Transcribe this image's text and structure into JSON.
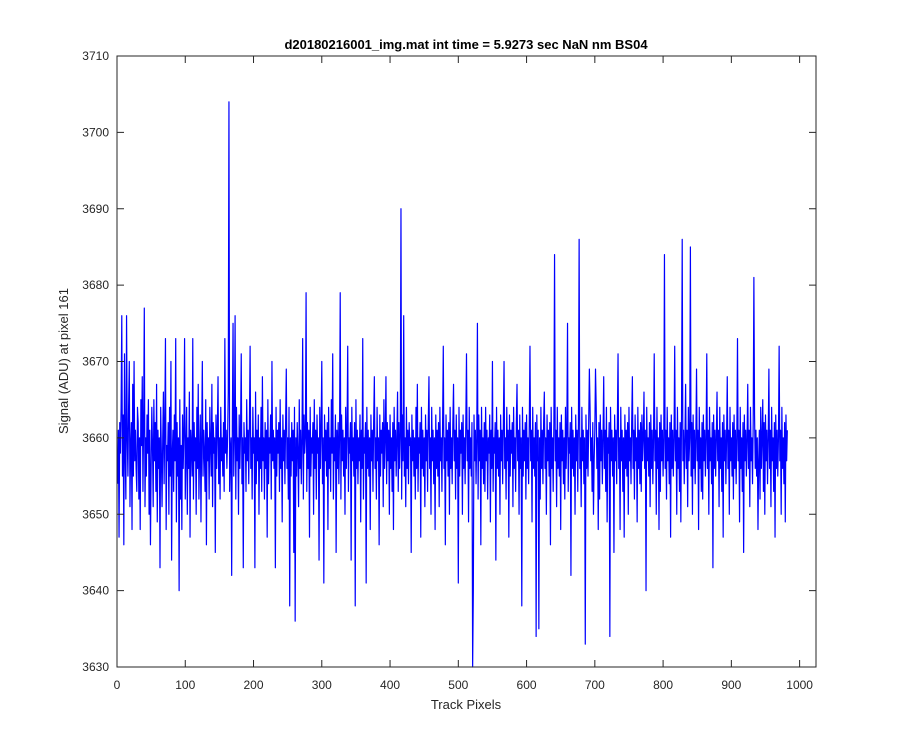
{
  "chart_data": {
    "type": "line",
    "title": "d20180216001_img.mat int time = 5.9273 sec  NaN nm BS04",
    "xlabel": "Track Pixels",
    "ylabel": "Signal (ADU) at pixel 161",
    "xlim": [
      0,
      1024
    ],
    "ylim": [
      3630,
      3710
    ],
    "xticks": [
      0,
      100,
      200,
      300,
      400,
      500,
      600,
      700,
      800,
      900,
      1000
    ],
    "yticks": [
      3630,
      3640,
      3650,
      3660,
      3670,
      3680,
      3690,
      3700,
      3710
    ],
    "grid": false,
    "legend": "none",
    "line_color": "#0000ff",
    "series": [
      {
        "x_start": 1,
        "x_step": 1,
        "values": [
          3654,
          3661,
          3647,
          3662,
          3658,
          3664,
          3676,
          3655,
          3663,
          3646,
          3671,
          3658,
          3652,
          3676,
          3660,
          3655,
          3664,
          3670,
          3651,
          3659,
          3662,
          3648,
          3667,
          3655,
          3670,
          3657,
          3661,
          3656,
          3653,
          3664,
          3662,
          3652,
          3660,
          3648,
          3665,
          3659,
          3668,
          3653,
          3662,
          3677,
          3651,
          3660,
          3655,
          3663,
          3658,
          3665,
          3650,
          3661,
          3646,
          3656,
          3664,
          3659,
          3651,
          3665,
          3657,
          3662,
          3653,
          3667,
          3649,
          3661,
          3656,
          3660,
          3643,
          3664,
          3658,
          3651,
          3660,
          3666,
          3654,
          3662,
          3673,
          3648,
          3659,
          3657,
          3662,
          3650,
          3664,
          3655,
          3670,
          3644,
          3658,
          3661,
          3653,
          3663,
          3657,
          3673,
          3649,
          3662,
          3655,
          3660,
          3640,
          3665,
          3652,
          3659,
          3648,
          3663,
          3656,
          3661,
          3673,
          3652,
          3658,
          3664,
          3650,
          3660,
          3656,
          3666,
          3647,
          3661,
          3659,
          3655,
          3673,
          3652,
          3662,
          3657,
          3660,
          3650,
          3664,
          3656,
          3667,
          3652,
          3658,
          3663,
          3649,
          3660,
          3670,
          3655,
          3661,
          3658,
          3653,
          3665,
          3646,
          3662,
          3657,
          3660,
          3652,
          3664,
          3659,
          3655,
          3667,
          3651,
          3662,
          3658,
          3660,
          3645,
          3663,
          3656,
          3661,
          3668,
          3654,
          3660,
          3652,
          3664,
          3657,
          3660,
          3655,
          3662,
          3653,
          3673,
          3658,
          3661,
          3656,
          3660,
          3666,
          3704,
          3653,
          3658,
          3660,
          3642,
          3662,
          3675,
          3655,
          3660,
          3676,
          3652,
          3664,
          3657,
          3660,
          3650,
          3663,
          3656,
          3661,
          3671,
          3654,
          3660,
          3643,
          3662,
          3658,
          3660,
          3653,
          3665,
          3657,
          3661,
          3654,
          3662,
          3672,
          3656,
          3660,
          3652,
          3664,
          3658,
          3660,
          3643,
          3666,
          3654,
          3661,
          3657,
          3663,
          3650,
          3660,
          3656,
          3664,
          3653,
          3668,
          3657,
          3660,
          3652,
          3662,
          3656,
          3661,
          3647,
          3665,
          3654,
          3660,
          3658,
          3663,
          3652,
          3670,
          3657,
          3661,
          3656,
          3660,
          3643,
          3664,
          3655,
          3661,
          3658,
          3662,
          3653,
          3665,
          3656,
          3660,
          3649,
          3663,
          3657,
          3661,
          3654,
          3662,
          3669,
          3656,
          3660,
          3652,
          3664,
          3638,
          3660,
          3655,
          3662,
          3657,
          3661,
          3645,
          3664,
          3636,
          3660,
          3655,
          3662,
          3658,
          3651,
          3665,
          3656,
          3661,
          3654,
          3660,
          3673,
          3652,
          3663,
          3658,
          3660,
          3679,
          3653,
          3662,
          3656,
          3661,
          3647,
          3664,
          3655,
          3660,
          3658,
          3662,
          3650,
          3665,
          3656,
          3661,
          3652,
          3663,
          3658,
          3660,
          3644,
          3664,
          3656,
          3661,
          3670,
          3654,
          3660,
          3641,
          3663,
          3657,
          3661,
          3655,
          3662,
          3648,
          3664,
          3656,
          3660,
          3653,
          3665,
          3658,
          3671,
          3652,
          3660,
          3657,
          3663,
          3645,
          3661,
          3656,
          3662,
          3654,
          3660,
          3679,
          3652,
          3663,
          3657,
          3661,
          3655,
          3660,
          3650,
          3664,
          3656,
          3661,
          3672,
          3653,
          3660,
          3658,
          3662,
          3644,
          3664,
          3657,
          3660,
          3655,
          3662,
          3638,
          3665,
          3656,
          3661,
          3654,
          3660,
          3657,
          3663,
          3649,
          3661,
          3656,
          3673,
          3652,
          3660,
          3658,
          3662,
          3641,
          3664,
          3656,
          3661,
          3655,
          3660,
          3648,
          3663,
          3657,
          3661,
          3653,
          3662,
          3668,
          3656,
          3660,
          3652,
          3664,
          3657,
          3660,
          3646,
          3663,
          3655,
          3661,
          3658,
          3662,
          3651,
          3665,
          3656,
          3660,
          3668,
          3654,
          3662,
          3657,
          3661,
          3650,
          3663,
          3656,
          3660,
          3653,
          3662,
          3648,
          3664,
          3657,
          3661,
          3655,
          3660,
          3666,
          3653,
          3662,
          3656,
          3660,
          3690,
          3652,
          3663,
          3657,
          3676,
          3655,
          3660,
          3651,
          3664,
          3656,
          3661,
          3654,
          3662,
          3659,
          3660,
          3645,
          3663,
          3657,
          3661,
          3655,
          3660,
          3652,
          3664,
          3656,
          3667,
          3653,
          3660,
          3658,
          3662,
          3647,
          3664,
          3656,
          3661,
          3655,
          3660,
          3651,
          3663,
          3657,
          3661,
          3653,
          3662,
          3668,
          3656,
          3660,
          3650,
          3664,
          3657,
          3661,
          3654,
          3660,
          3648,
          3663,
          3656,
          3661,
          3655,
          3662,
          3651,
          3664,
          3657,
          3660,
          3653,
          3662,
          3672,
          3656,
          3660,
          3646,
          3663,
          3657,
          3661,
          3655,
          3662,
          3650,
          3664,
          3656,
          3660,
          3654,
          3662,
          3667,
          3657,
          3661,
          3652,
          3663,
          3656,
          3660,
          3641,
          3664,
          3655,
          3661,
          3658,
          3662,
          3650,
          3663,
          3656,
          3660,
          3654,
          3662,
          3671,
          3657,
          3661,
          3649,
          3664,
          3656,
          3660,
          3655,
          3662,
          3630,
          3640,
          3663,
          3657,
          3661,
          3654,
          3660,
          3675,
          3652,
          3663,
          3657,
          3661,
          3646,
          3664,
          3656,
          3660,
          3654,
          3662,
          3653,
          3664,
          3657,
          3661,
          3652,
          3660,
          3658,
          3663,
          3649,
          3661,
          3656,
          3670,
          3653,
          3660,
          3658,
          3662,
          3644,
          3664,
          3656,
          3661,
          3655,
          3660,
          3650,
          3663,
          3657,
          3661,
          3654,
          3662,
          3670,
          3656,
          3660,
          3652,
          3664,
          3657,
          3661,
          3647,
          3663,
          3655,
          3661,
          3658,
          3662,
          3651,
          3664,
          3656,
          3660,
          3653,
          3662,
          3667,
          3657,
          3661,
          3650,
          3663,
          3656,
          3660,
          3638,
          3664,
          3655,
          3661,
          3657,
          3662,
          3652,
          3663,
          3656,
          3660,
          3654,
          3662,
          3672,
          3657,
          3661,
          3649,
          3664,
          3656,
          3660,
          3655,
          3662,
          3634,
          3663,
          3657,
          3661,
          3635,
          3660,
          3652,
          3664,
          3656,
          3661,
          3654,
          3662,
          3666,
          3656,
          3660,
          3650,
          3663,
          3657,
          3661,
          3655,
          3662,
          3646,
          3664,
          3656,
          3660,
          3653,
          3662,
          3684,
          3657,
          3661,
          3651,
          3664,
          3656,
          3660,
          3655,
          3662,
          3648,
          3663,
          3657,
          3661,
          3654,
          3660,
          3652,
          3664,
          3656,
          3661,
          3675,
          3653,
          3660,
          3658,
          3662,
          3642,
          3664,
          3656,
          3661,
          3655,
          3660,
          3650,
          3663,
          3657,
          3661,
          3653,
          3662,
          3686,
          3656,
          3660,
          3651,
          3664,
          3657,
          3661,
          3654,
          3660,
          3633,
          3663,
          3656,
          3661,
          3655,
          3662,
          3669,
          3664,
          3657,
          3660,
          3653,
          3662,
          3650,
          3657,
          3661,
          3669,
          3664,
          3656,
          3660,
          3648,
          3662,
          3652,
          3663,
          3657,
          3661,
          3654,
          3660,
          3668,
          3656,
          3661,
          3653,
          3664,
          3649,
          3660,
          3658,
          3662,
          3634,
          3664,
          3657,
          3661,
          3655,
          3660,
          3645,
          3663,
          3657,
          3661,
          3654,
          3662,
          3671,
          3656,
          3660,
          3648,
          3664,
          3657,
          3661,
          3653,
          3660,
          3647,
          3663,
          3656,
          3661,
          3655,
          3662,
          3650,
          3664,
          3657,
          3660,
          3654,
          3662,
          3668,
          3656,
          3661,
          3652,
          3663,
          3657,
          3660,
          3649,
          3664,
          3656,
          3661,
          3654,
          3662,
          3653,
          3663,
          3657,
          3660,
          3666,
          3656,
          3661,
          3640,
          3664,
          3657,
          3660,
          3655,
          3662,
          3651,
          3663,
          3656,
          3661,
          3654,
          3660,
          3671,
          3657,
          3661,
          3650,
          3664,
          3656,
          3660,
          3648,
          3662,
          3653,
          3663,
          3657,
          3661,
          3655,
          3660,
          3684,
          3656,
          3661,
          3652,
          3664,
          3657,
          3660,
          3654,
          3662,
          3647,
          3663,
          3656,
          3661,
          3655,
          3660,
          3672,
          3657,
          3661,
          3650,
          3664,
          3656,
          3660,
          3653,
          3662,
          3649,
          3663,
          3686,
          3657,
          3661,
          3654,
          3660,
          3667,
          3656,
          3661,
          3651,
          3664,
          3657,
          3660,
          3685,
          3655,
          3662,
          3650,
          3663,
          3656,
          3661,
          3654,
          3660,
          3669,
          3657,
          3661,
          3648,
          3664,
          3656,
          3660,
          3653,
          3662,
          3652,
          3663,
          3657,
          3661,
          3655,
          3660,
          3671,
          3656,
          3661,
          3650,
          3664,
          3657,
          3660,
          3654,
          3662,
          3643,
          3663,
          3656,
          3661,
          3655,
          3660,
          3666,
          3657,
          3661,
          3651,
          3664,
          3656,
          3660,
          3653,
          3662,
          3647,
          3663,
          3657,
          3661,
          3654,
          3660,
          3668,
          3656,
          3661,
          3650,
          3664,
          3657,
          3660,
          3655,
          3662,
          3652,
          3663,
          3656,
          3661,
          3654,
          3660,
          3673,
          3657,
          3661,
          3649,
          3664,
          3656,
          3660,
          3653,
          3662,
          3645,
          3663,
          3657,
          3661,
          3655,
          3660,
          3667,
          3656,
          3661,
          3651,
          3664,
          3657,
          3660,
          3654,
          3662,
          3681,
          3663,
          3656,
          3661,
          3655,
          3660,
          3648,
          3657,
          3661,
          3652,
          3664,
          3656,
          3660,
          3665,
          3653,
          3662,
          3650,
          3663,
          3657,
          3661,
          3654,
          3660,
          3669,
          3656,
          3661,
          3651,
          3664,
          3657,
          3660,
          3653,
          3662,
          3647,
          3663,
          3656,
          3661,
          3655,
          3660,
          3672,
          3657,
          3661,
          3650,
          3664,
          3656,
          3660,
          3654,
          3662,
          3649,
          3663,
          3657,
          3661
        ]
      }
    ]
  }
}
